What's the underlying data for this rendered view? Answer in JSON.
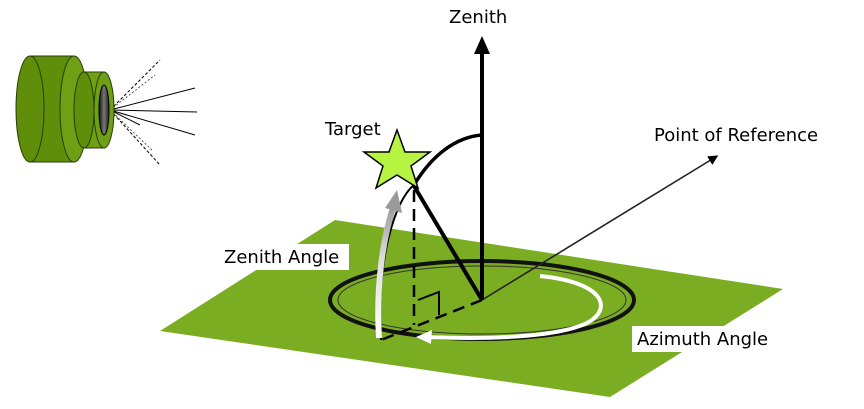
{
  "labels": {
    "zenith": "Zenith",
    "target": "Target",
    "point_of_reference": "Point of Reference",
    "zenith_angle": "Zenith Angle",
    "azimuth_angle": "Azimuth Angle"
  },
  "colors": {
    "ground_plane": "#7bad22",
    "camera_body": "#5e8e0a",
    "camera_outline": "#2a3d05",
    "target_star": "#b7f441",
    "line": "#000000",
    "arrow_light": "#ffffff"
  },
  "icons": {
    "camera": "camera-icon",
    "target": "star-icon"
  }
}
